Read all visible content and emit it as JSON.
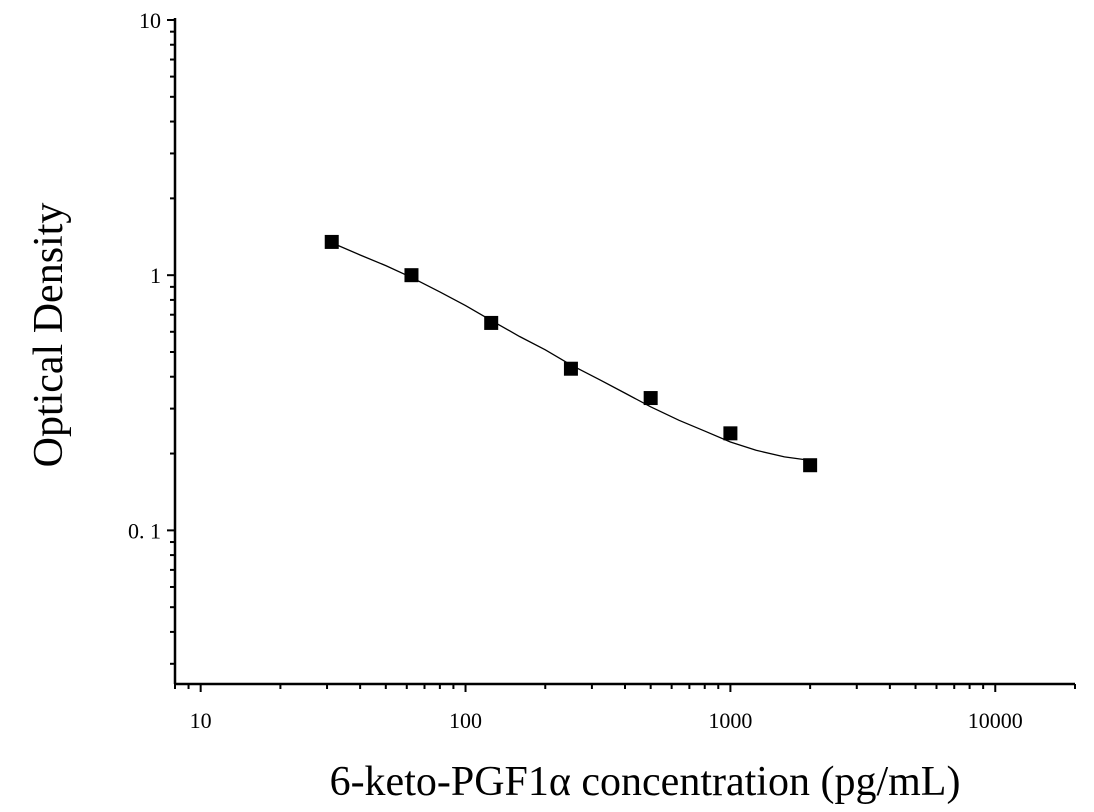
{
  "chart_data": {
    "type": "scatter",
    "xlabel": "6-keto-PGF1α concentration (pg/mL)",
    "ylabel": "Optical Density",
    "xscale": "log",
    "yscale": "log",
    "xlim": [
      8,
      20000
    ],
    "ylim": [
      0.025,
      10
    ],
    "x_ticks": [
      10,
      100,
      1000,
      10000
    ],
    "x_tick_labels": [
      "10",
      "100",
      "1000",
      "10000"
    ],
    "y_ticks": [
      0.1,
      1,
      10
    ],
    "y_tick_labels": [
      "0. 1",
      "1",
      "10"
    ],
    "grid": false,
    "series": [
      {
        "marker": "square",
        "color": "#000000",
        "x": [
          31.25,
          62.5,
          125,
          250,
          500,
          1000,
          2000
        ],
        "y": [
          1.35,
          1.0,
          0.65,
          0.43,
          0.33,
          0.24,
          0.18
        ]
      }
    ],
    "fit_curve": {
      "color": "#000000",
      "x": [
        31.25,
        40,
        50,
        62.5,
        80,
        100,
        125,
        160,
        200,
        250,
        320,
        400,
        500,
        640,
        800,
        1000,
        1250,
        1600,
        2000
      ],
      "y": [
        1.34,
        1.2,
        1.09,
        0.98,
        0.86,
        0.76,
        0.665,
        0.575,
        0.51,
        0.445,
        0.39,
        0.345,
        0.305,
        0.27,
        0.245,
        0.222,
        0.206,
        0.194,
        0.188
      ]
    }
  }
}
